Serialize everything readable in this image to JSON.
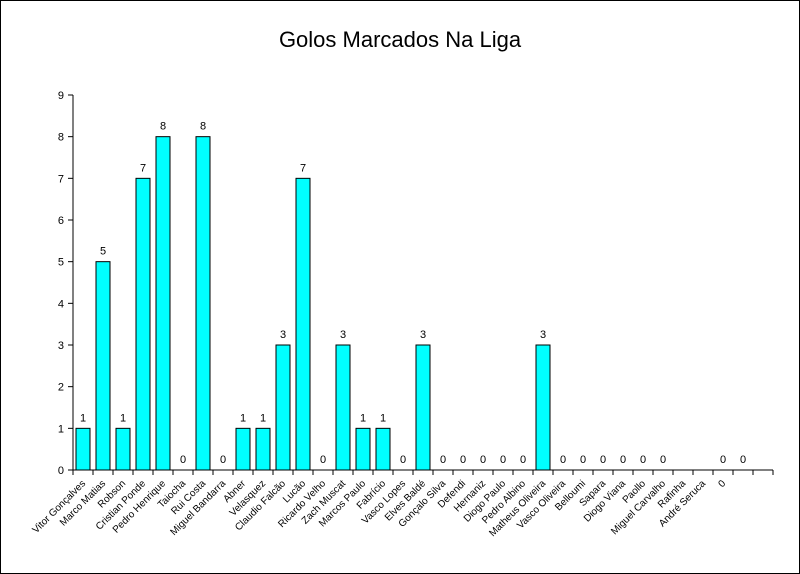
{
  "chart_data": {
    "type": "bar",
    "title": "Golos Marcados Na Liga",
    "xlabel": "",
    "ylabel": "",
    "ylim": [
      0,
      9
    ],
    "yticks": [
      0,
      1,
      2,
      3,
      4,
      5,
      6,
      7,
      8,
      9
    ],
    "grid": false,
    "legend": "none",
    "bar_color": "#00ffff",
    "categories": [
      "Vitor Gonçalves",
      "Marco Matias",
      "Robson",
      "Cristian Ponde",
      "Pedro Henrique",
      "Taiocha",
      "Rui Costa",
      "Miguel Bandarra",
      "Abner",
      "Velasquez",
      "Claudio Falcão",
      "Lucão",
      "Ricardo Velho",
      "Zach Muscat",
      "Marcos Paulo",
      "Fabrício",
      "Vasco Lopes",
      "Elves Baldé",
      "Gonçalo Silva",
      "Defendi",
      "Hernaniz",
      "Diogo Paulo",
      "Pedro Albino",
      "Matheus Oliveira",
      "Vasco Oliveira",
      "Belloumi",
      "Sapara",
      "Diogo Viana",
      "Paollo",
      "Miguel Carvalho",
      "Rafinha",
      "André Seruca",
      "0",
      "",
      ""
    ],
    "values": [
      1,
      5,
      1,
      7,
      8,
      0,
      8,
      0,
      1,
      1,
      3,
      7,
      0,
      3,
      1,
      1,
      0,
      3,
      0,
      0,
      0,
      0,
      0,
      3,
      0,
      0,
      0,
      0,
      0,
      0,
      null,
      null,
      0,
      0,
      null
    ],
    "data_labels": [
      "1",
      "5",
      "1",
      "7",
      "8",
      "0",
      "8",
      "0",
      "1",
      "1",
      "3",
      "7",
      "0",
      "3",
      "1",
      "1",
      "0",
      "3",
      "0",
      "0",
      "0",
      "0",
      "0",
      "3",
      "0",
      "0",
      "0",
      "0",
      "0",
      "0",
      "",
      "",
      "0",
      "0",
      ""
    ]
  }
}
